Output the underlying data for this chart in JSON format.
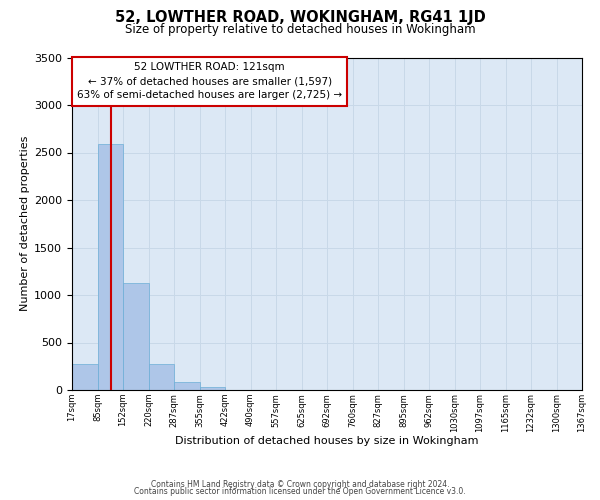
{
  "title": "52, LOWTHER ROAD, WOKINGHAM, RG41 1JD",
  "subtitle": "Size of property relative to detached houses in Wokingham",
  "xlabel": "Distribution of detached houses by size in Wokingham",
  "ylabel": "Number of detached properties",
  "bin_labels": [
    "17sqm",
    "85sqm",
    "152sqm",
    "220sqm",
    "287sqm",
    "355sqm",
    "422sqm",
    "490sqm",
    "557sqm",
    "625sqm",
    "692sqm",
    "760sqm",
    "827sqm",
    "895sqm",
    "962sqm",
    "1030sqm",
    "1097sqm",
    "1165sqm",
    "1232sqm",
    "1300sqm",
    "1367sqm"
  ],
  "bar_heights": [
    270,
    2590,
    1130,
    270,
    80,
    30,
    0,
    0,
    0,
    0,
    0,
    0,
    0,
    0,
    0,
    0,
    0,
    0,
    0,
    0
  ],
  "bar_color": "#aec6e8",
  "bar_edge_color": "#6baed6",
  "property_line_color": "#cc0000",
  "annotation_text": "52 LOWTHER ROAD: 121sqm\n← 37% of detached houses are smaller (1,597)\n63% of semi-detached houses are larger (2,725) →",
  "annotation_box_color": "#ffffff",
  "annotation_box_edge_color": "#cc0000",
  "ylim": [
    0,
    3500
  ],
  "yticks": [
    0,
    500,
    1000,
    1500,
    2000,
    2500,
    3000,
    3500
  ],
  "grid_color": "#c8d8e8",
  "bg_color": "#dce8f5",
  "fig_bg_color": "#ffffff",
  "footer_line1": "Contains HM Land Registry data © Crown copyright and database right 2024.",
  "footer_line2": "Contains public sector information licensed under the Open Government Licence v3.0."
}
